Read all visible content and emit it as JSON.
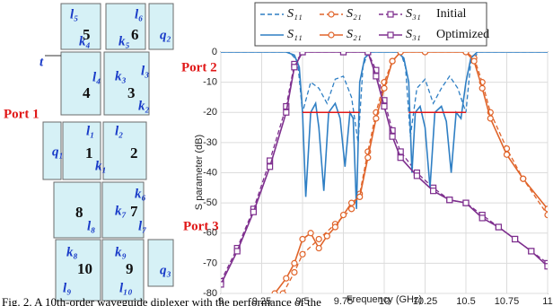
{
  "diagram": {
    "ports": [
      "Port 1",
      "Port 2",
      "Port 3"
    ],
    "cavities": [
      "1",
      "2",
      "3",
      "4",
      "5",
      "6",
      "7",
      "8",
      "9",
      "10"
    ],
    "dimensions": [
      "l₅",
      "k₄",
      "l₆",
      "k₅",
      "q₂",
      "t",
      "l₄",
      "k₃",
      "l₃",
      "k₂",
      "q₁",
      "l₁",
      "k₁",
      "l₂",
      "k₆",
      "k₇",
      "l₇",
      "l₈",
      "k₈",
      "l₉",
      "k₉",
      "l₁₀",
      "q₃"
    ]
  },
  "chart_data": {
    "type": "line",
    "xlabel": "Frequency (GHz)",
    "ylabel": "S parameter (dB)",
    "xlim": [
      9,
      11
    ],
    "ylim": [
      -80,
      0
    ],
    "xticks": [
      9,
      9.25,
      9.5,
      9.75,
      10,
      10.25,
      10.5,
      10.75,
      11
    ],
    "yticks": [
      -80,
      -70,
      -60,
      -50,
      -40,
      -30,
      -20,
      -10,
      0
    ],
    "grid": true,
    "legend_groups": [
      "Initial",
      "Optimized"
    ],
    "series": [
      {
        "name": "S₁₁",
        "group": "Initial",
        "dashed": true,
        "color": "#2f7fc4",
        "x": [
          9,
          9.42,
          9.47,
          9.5,
          9.55,
          9.6,
          9.65,
          9.7,
          9.75,
          9.8,
          9.84,
          9.87,
          9.9,
          10.1,
          10.13,
          10.16,
          10.2,
          10.25,
          10.3,
          10.35,
          10.4,
          10.45,
          10.5,
          10.53,
          10.58,
          11
        ],
        "values": [
          0,
          0,
          -3,
          -20,
          -10,
          -12,
          -17,
          -9,
          -8,
          -15,
          -30,
          -5,
          0,
          0,
          -5,
          -28,
          -12,
          -9,
          -17,
          -12,
          -8,
          -12,
          -20,
          -3,
          0,
          0
        ]
      },
      {
        "name": "S₂₁",
        "group": "Initial",
        "dashed": true,
        "marker": "circle",
        "color": "#e0642a",
        "x": [
          9.38,
          9.45,
          9.5,
          9.6,
          9.7,
          9.8,
          9.85,
          9.9,
          9.95,
          10,
          10.05,
          10.1,
          10.25,
          10.5,
          10.55,
          10.6,
          10.65,
          10.75,
          10.85,
          11
        ],
        "values": [
          -80,
          -73,
          -67,
          -62,
          -57,
          -52,
          -47,
          -33,
          -20,
          -10,
          -3,
          0,
          0,
          0,
          -2,
          -10,
          -20,
          -32,
          -42,
          -54
        ]
      },
      {
        "name": "S₃₁",
        "group": "Initial",
        "dashed": true,
        "marker": "square",
        "color": "#7e2f8e",
        "x": [
          9,
          9.1,
          9.2,
          9.3,
          9.4,
          9.45,
          9.5,
          9.75,
          9.9,
          9.95,
          10,
          10.05,
          10.1,
          10.2,
          10.3,
          10.4,
          10.5,
          10.6,
          10.7,
          10.8,
          10.9,
          11
        ],
        "values": [
          -76,
          -65,
          -52,
          -36,
          -18,
          -4,
          0,
          0,
          0,
          -6,
          -16,
          -26,
          -33,
          -40,
          -45,
          -49,
          -50,
          -54,
          -58,
          -62,
          -66,
          -70
        ]
      },
      {
        "name": "S₁₁",
        "group": "Optimized",
        "dashed": false,
        "color": "#2f7fc4",
        "x": [
          9,
          9.4,
          9.45,
          9.48,
          9.5,
          9.52,
          9.55,
          9.58,
          9.6,
          9.63,
          9.66,
          9.7,
          9.73,
          9.76,
          9.79,
          9.81,
          9.83,
          9.85,
          9.88,
          9.92,
          10.08,
          10.12,
          10.15,
          10.17,
          10.19,
          10.22,
          10.25,
          10.28,
          10.31,
          10.35,
          10.38,
          10.41,
          10.44,
          10.47,
          10.5,
          10.53,
          10.57,
          11
        ],
        "values": [
          0,
          0,
          -1,
          -5,
          -20,
          -48,
          -20,
          -17,
          -25,
          -46,
          -20,
          -17,
          -22,
          -38,
          -20,
          -22,
          -52,
          -10,
          -2,
          0,
          0,
          -2,
          -10,
          -40,
          -20,
          -18,
          -25,
          -45,
          -20,
          -18,
          -23,
          -40,
          -20,
          -22,
          -10,
          -2,
          0,
          0
        ]
      },
      {
        "name": "S₂₁",
        "group": "Optimized",
        "dashed": false,
        "marker": "circle",
        "color": "#e0642a",
        "x": [
          9.33,
          9.4,
          9.45,
          9.5,
          9.55,
          9.6,
          9.65,
          9.7,
          9.75,
          9.8,
          9.85,
          9.9,
          9.95,
          10,
          10.05,
          10.1,
          10.25,
          10.5,
          10.55,
          10.6,
          10.65,
          10.75,
          10.85,
          11
        ],
        "values": [
          -80,
          -75,
          -70,
          -62,
          -60,
          -65,
          -61,
          -58,
          -54,
          -50,
          -48,
          -35,
          -22,
          -12,
          -3,
          0,
          0,
          0,
          -3,
          -12,
          -22,
          -34,
          -42,
          -52
        ]
      },
      {
        "name": "S₃₁",
        "group": "Optimized",
        "dashed": false,
        "marker": "square",
        "color": "#7e2f8e",
        "x": [
          9,
          9.1,
          9.2,
          9.3,
          9.4,
          9.45,
          9.5,
          9.75,
          9.9,
          9.95,
          10,
          10.05,
          10.1,
          10.2,
          10.3,
          10.4,
          10.5,
          10.6,
          10.7,
          10.8,
          10.9,
          11
        ],
        "values": [
          -77,
          -66,
          -53,
          -38,
          -20,
          -5,
          0,
          0,
          0,
          -8,
          -18,
          -28,
          -35,
          -41,
          -46,
          -49,
          -50,
          -55,
          -58,
          -62,
          -66,
          -71
        ]
      }
    ],
    "spec_color": "#e01818",
    "spec_lines": [
      {
        "x": [
          9.5,
          9.85
        ],
        "y": -20
      },
      {
        "x": [
          10.15,
          10.5
        ],
        "y": -20
      }
    ]
  },
  "caption": "Fig. 2.  A 10th-order waveguide diplexer with the performance of the"
}
